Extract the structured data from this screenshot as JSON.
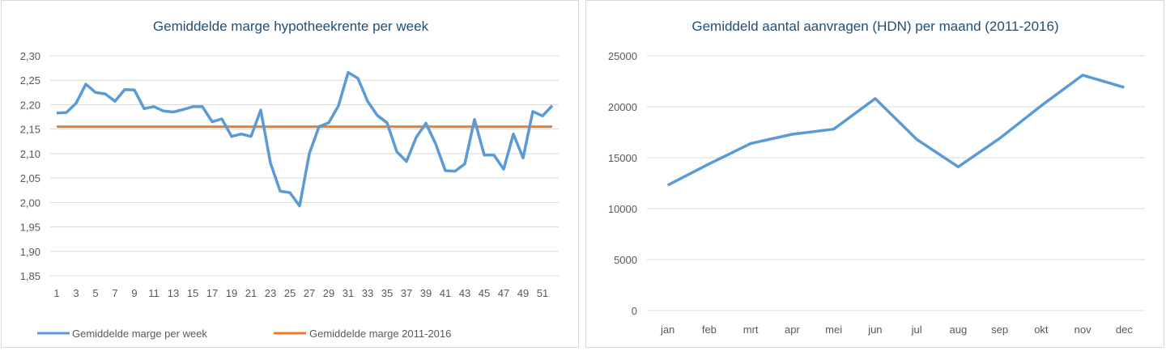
{
  "colors": {
    "series_blue": "#5b9bd5",
    "series_orange": "#ed7d31",
    "grid": "#d9d9d9",
    "title": "#1f4e79",
    "text": "#595959"
  },
  "chart_data": [
    {
      "type": "line",
      "title": "Gemiddelde marge hypotheekrente per week",
      "xlabel": "",
      "ylabel": "",
      "ylim": [
        1.85,
        2.3
      ],
      "y_ticks": [
        "1,85",
        "1,90",
        "1,95",
        "2,00",
        "2,05",
        "2,10",
        "2,15",
        "2,20",
        "2,25",
        "2,30"
      ],
      "y_tick_values": [
        1.85,
        1.9,
        1.95,
        2.0,
        2.05,
        2.1,
        2.15,
        2.2,
        2.25,
        2.3
      ],
      "x_tick_labels": [
        "1",
        "3",
        "5",
        "7",
        "9",
        "11",
        "13",
        "15",
        "17",
        "19",
        "21",
        "23",
        "25",
        "27",
        "29",
        "31",
        "33",
        "35",
        "37",
        "39",
        "41",
        "43",
        "45",
        "47",
        "49",
        "51"
      ],
      "x": [
        1,
        2,
        3,
        4,
        5,
        6,
        7,
        8,
        9,
        10,
        11,
        12,
        13,
        14,
        15,
        16,
        17,
        18,
        19,
        20,
        21,
        22,
        23,
        24,
        25,
        26,
        27,
        28,
        29,
        30,
        31,
        32,
        33,
        34,
        35,
        36,
        37,
        38,
        39,
        40,
        41,
        42,
        43,
        44,
        45,
        46,
        47,
        48,
        49,
        50,
        51,
        52
      ],
      "series": [
        {
          "name": "Gemiddelde marge per week",
          "color": "#5b9bd5",
          "values": [
            2.183,
            2.184,
            2.203,
            2.242,
            2.225,
            2.222,
            2.207,
            2.231,
            2.23,
            2.192,
            2.196,
            2.187,
            2.185,
            2.19,
            2.196,
            2.196,
            2.165,
            2.171,
            2.135,
            2.14,
            2.135,
            2.189,
            2.081,
            2.023,
            2.02,
            1.993,
            2.1,
            2.155,
            2.163,
            2.198,
            2.266,
            2.254,
            2.207,
            2.178,
            2.163,
            2.104,
            2.084,
            2.133,
            2.162,
            2.12,
            2.065,
            2.064,
            2.079,
            2.17,
            2.097,
            2.097,
            2.068,
            2.14,
            2.091,
            2.186,
            2.177,
            2.198
          ]
        },
        {
          "name": "Gemiddelde marge 2011-2016",
          "color": "#ed7d31",
          "values": [
            2.155,
            2.155,
            2.155,
            2.155,
            2.155,
            2.155,
            2.155,
            2.155,
            2.155,
            2.155,
            2.155,
            2.155,
            2.155,
            2.155,
            2.155,
            2.155,
            2.155,
            2.155,
            2.155,
            2.155,
            2.155,
            2.155,
            2.155,
            2.155,
            2.155,
            2.155,
            2.155,
            2.155,
            2.155,
            2.155,
            2.155,
            2.155,
            2.155,
            2.155,
            2.155,
            2.155,
            2.155,
            2.155,
            2.155,
            2.155,
            2.155,
            2.155,
            2.155,
            2.155,
            2.155,
            2.155,
            2.155,
            2.155,
            2.155,
            2.155,
            2.155,
            2.155
          ]
        }
      ],
      "legend_position": "bottom",
      "grid": true
    },
    {
      "type": "line",
      "title": "Gemiddeld aantal aanvragen (HDN) per maand (2011-2016)",
      "xlabel": "",
      "ylabel": "",
      "ylim": [
        0,
        25000
      ],
      "y_ticks": [
        "0",
        "5000",
        "10000",
        "15000",
        "20000",
        "25000"
      ],
      "y_tick_values": [
        0,
        5000,
        10000,
        15000,
        20000,
        25000
      ],
      "categories": [
        "jan",
        "feb",
        "mrt",
        "apr",
        "mei",
        "jun",
        "jul",
        "aug",
        "sep",
        "okt",
        "nov",
        "dec"
      ],
      "series": [
        {
          "color": "#5b9bd5",
          "values": [
            12300,
            14400,
            16400,
            17300,
            17800,
            20800,
            16800,
            14100,
            16900,
            20100,
            23100,
            21900
          ]
        }
      ],
      "legend_position": "none",
      "grid": true
    }
  ]
}
